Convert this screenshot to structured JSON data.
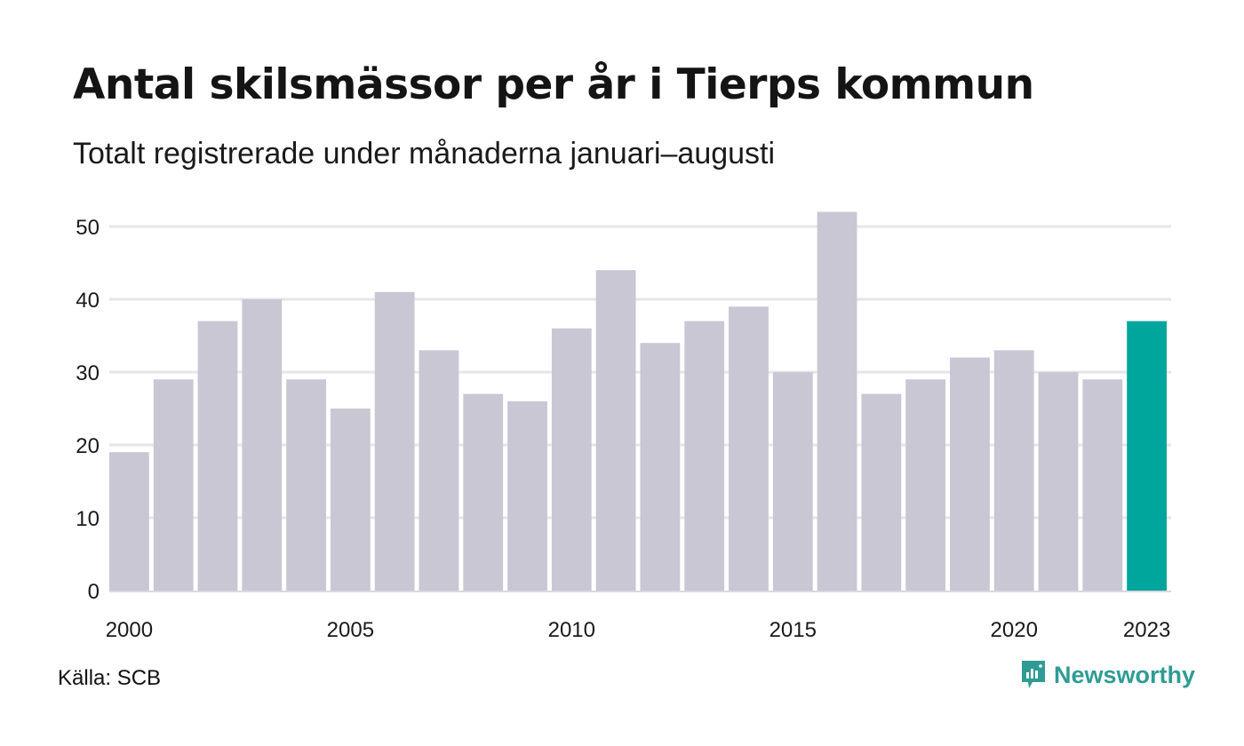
{
  "title": "Antal skilsmässor per år i Tierps kommun",
  "subtitle": "Totalt registrerade under månaderna januari–augusti",
  "source": "Källa: SCB",
  "brand": "Newsworthy",
  "colors": {
    "bar": "#c8c7d3",
    "highlight": "#00a59b",
    "grid": "#e6e6ea",
    "brand": "#2f9c94"
  },
  "chart_data": {
    "type": "bar",
    "categories": [
      "2000",
      "2001",
      "2002",
      "2003",
      "2004",
      "2005",
      "2006",
      "2007",
      "2008",
      "2009",
      "2010",
      "2011",
      "2012",
      "2013",
      "2014",
      "2015",
      "2016",
      "2017",
      "2018",
      "2019",
      "2020",
      "2021",
      "2022",
      "2023"
    ],
    "values": [
      19,
      29,
      37,
      40,
      29,
      25,
      41,
      33,
      27,
      26,
      36,
      44,
      34,
      37,
      39,
      30,
      52,
      27,
      29,
      32,
      33,
      30,
      29,
      37
    ],
    "highlight_index": 23,
    "x_tick_labels": [
      "2000",
      "2005",
      "2010",
      "2015",
      "2020",
      "2023"
    ],
    "y_ticks": [
      0,
      10,
      20,
      30,
      40,
      50
    ],
    "ylim": [
      0,
      52
    ],
    "grid": true,
    "legend": "none"
  }
}
